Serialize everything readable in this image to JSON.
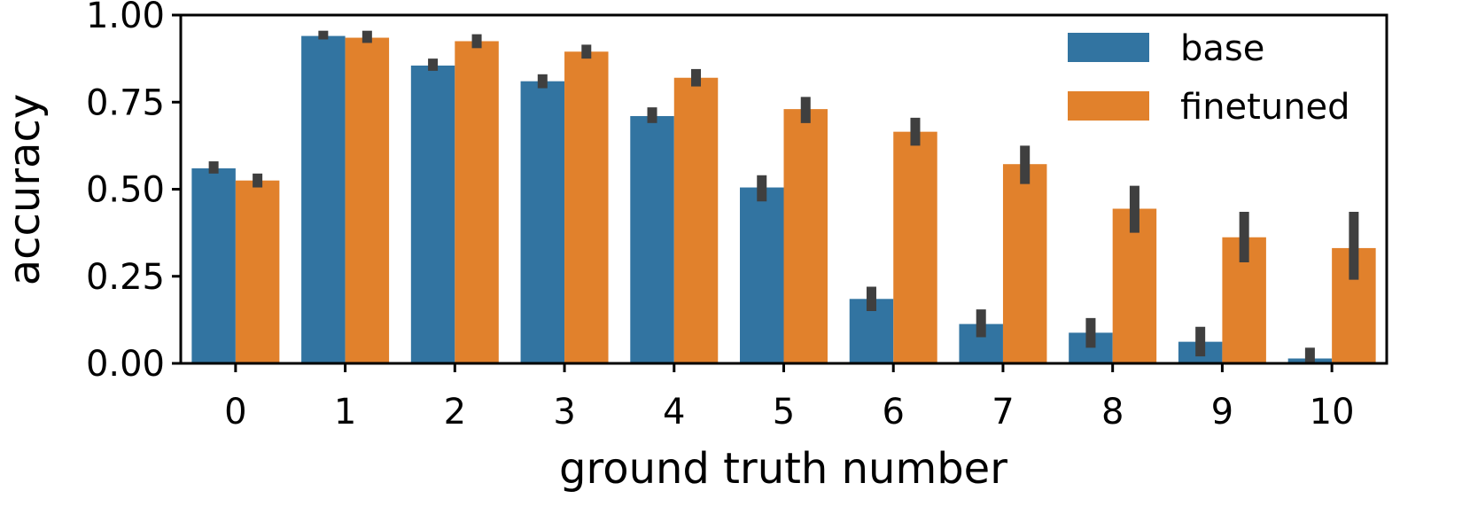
{
  "chart_data": {
    "type": "bar",
    "xlabel": "ground truth number",
    "ylabel": "accuracy",
    "categories": [
      "0",
      "1",
      "2",
      "3",
      "4",
      "5",
      "6",
      "7",
      "8",
      "9",
      "10"
    ],
    "ylim": [
      0,
      1
    ],
    "yticks": [
      "0.00",
      "0.25",
      "0.50",
      "0.75",
      "1.00"
    ],
    "legend_position": "top-right",
    "grid": false,
    "series": [
      {
        "name": "base",
        "color": "#3274a1",
        "values": [
          0.56,
          0.94,
          0.855,
          0.81,
          0.71,
          0.505,
          0.185,
          0.113,
          0.088,
          0.062,
          0.014
        ],
        "error_low": [
          0.545,
          0.93,
          0.84,
          0.79,
          0.69,
          0.465,
          0.15,
          0.075,
          0.045,
          0.02,
          0.0
        ],
        "error_high": [
          0.58,
          0.955,
          0.875,
          0.83,
          0.735,
          0.54,
          0.22,
          0.155,
          0.13,
          0.105,
          0.045
        ]
      },
      {
        "name": "finetuned",
        "color": "#e1812c",
        "values": [
          0.525,
          0.935,
          0.925,
          0.895,
          0.82,
          0.73,
          0.665,
          0.572,
          0.444,
          0.362,
          0.331
        ],
        "error_low": [
          0.505,
          0.92,
          0.905,
          0.875,
          0.795,
          0.69,
          0.625,
          0.515,
          0.375,
          0.29,
          0.24
        ],
        "error_high": [
          0.545,
          0.955,
          0.945,
          0.915,
          0.845,
          0.765,
          0.705,
          0.625,
          0.51,
          0.435,
          0.435
        ]
      }
    ],
    "error_bar_color": "#3f3f3f"
  }
}
